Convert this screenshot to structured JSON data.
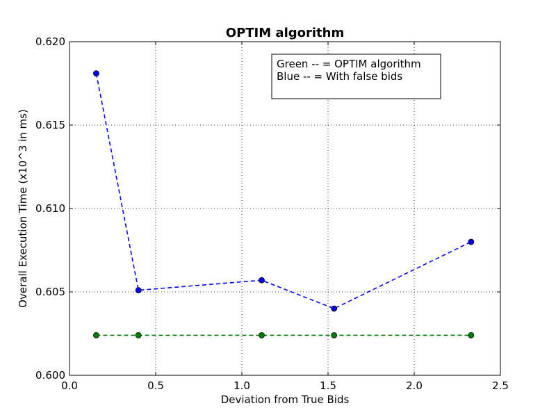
{
  "chart_data": {
    "type": "line",
    "title": "OPTIM algorithm",
    "xlabel": "Deviation from True Bids",
    "ylabel": "Overall Execution Time (x10^3 in ms)",
    "xlim": [
      0.0,
      2.5
    ],
    "ylim": [
      0.6,
      0.62
    ],
    "xticks": [
      "0.0",
      "0.5",
      "1.0",
      "1.5",
      "2.0",
      "2.5"
    ],
    "yticks": [
      "0.600",
      "0.605",
      "0.610",
      "0.615",
      "0.620"
    ],
    "grid": true,
    "legend_location": "top-right",
    "legend_lines": [
      "Green -- = OPTIM algorithm",
      "Blue -- = With false bids"
    ],
    "series": [
      {
        "color": "#0000ff",
        "linestyle": "dashed",
        "marker": "circle",
        "x": [
          0.155,
          0.4,
          1.115,
          1.535,
          2.33
        ],
        "y": [
          0.6181,
          0.6051,
          0.6057,
          0.604,
          0.608
        ]
      },
      {
        "color": "#008000",
        "linestyle": "dashed",
        "marker": "circle",
        "x": [
          0.155,
          0.4,
          1.115,
          1.535,
          2.33
        ],
        "y": [
          0.6024,
          0.6024,
          0.6024,
          0.6024,
          0.6024
        ]
      }
    ]
  }
}
